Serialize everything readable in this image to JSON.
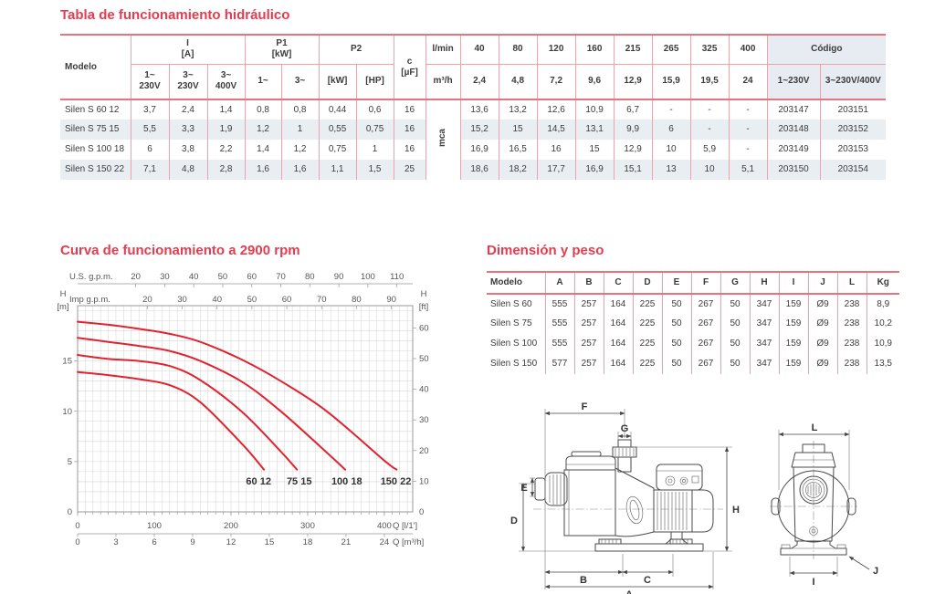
{
  "titles": {
    "hydraulic": "Tabla de funcionamiento hidráulico",
    "curve": "Curva de funcionamiento a 2900 rpm",
    "dimensions": "Dimensión y peso"
  },
  "ht": {
    "h": {
      "modelo": "Modelo",
      "i_a": "I\n[A]",
      "p1": "P1\n[kW]",
      "p2": "P2",
      "c": "c\n[µF]",
      "lmin": "l/min",
      "m3h": "m³/h",
      "v1_230": "1~\n230V",
      "v3_230": "3~\n230V",
      "v3_400": "3~\n400V",
      "p1_1": "1~",
      "p1_3": "3~",
      "p2_kw": "[kW]",
      "p2_hp": "[HP]",
      "codigo": "Código",
      "cod_1": "1~230V",
      "cod_3": "3~230V/400V"
    },
    "flow_lmin": [
      "40",
      "80",
      "120",
      "160",
      "215",
      "265",
      "325",
      "400"
    ],
    "flow_m3h": [
      "2,4",
      "4,8",
      "7,2",
      "9,6",
      "12,9",
      "15,9",
      "19,5",
      "24"
    ],
    "mca_label": "mca",
    "rows": [
      {
        "model": "Silen S 60 12",
        "i": [
          "3,7",
          "2,4",
          "1,4"
        ],
        "p1": [
          "0,8",
          "0,8"
        ],
        "p2": [
          "0,44",
          "0,6"
        ],
        "c": "16",
        "heads": [
          "13,6",
          "13,2",
          "12,6",
          "10,9",
          "6,7",
          "-",
          "-",
          "-"
        ],
        "codes": [
          "203147",
          "203151"
        ]
      },
      {
        "model": "Silen S 75 15",
        "i": [
          "5,5",
          "3,3",
          "1,9"
        ],
        "p1": [
          "1,2",
          "1"
        ],
        "p2": [
          "0,55",
          "0,75"
        ],
        "c": "16",
        "heads": [
          "15,2",
          "15",
          "14,5",
          "13,1",
          "9,9",
          "6",
          "-",
          "-"
        ],
        "codes": [
          "203148",
          "203152"
        ]
      },
      {
        "model": "Silen S 100 18",
        "i": [
          "6",
          "3,8",
          "2,2"
        ],
        "p1": [
          "1,4",
          "1,2"
        ],
        "p2": [
          "0,75",
          "1"
        ],
        "c": "16",
        "heads": [
          "16,9",
          "16,5",
          "16",
          "15",
          "12,9",
          "10",
          "5,9",
          "-"
        ],
        "codes": [
          "203149",
          "203153"
        ]
      },
      {
        "model": "Silen S 150 22",
        "i": [
          "7,1",
          "4,8",
          "2,8"
        ],
        "p1": [
          "1,6",
          "1,6"
        ],
        "p2": [
          "1,1",
          "1,5"
        ],
        "c": "25",
        "heads": [
          "18,6",
          "18,2",
          "17,7",
          "16,9",
          "15,1",
          "13",
          "10",
          "5,1"
        ],
        "codes": [
          "203150",
          "203154"
        ]
      }
    ]
  },
  "chart_data": {
    "type": "line",
    "title": "Curva de funcionamiento a 2900 rpm",
    "x_axis": {
      "label": "Q [l/1']",
      "ticks": [
        0,
        100,
        200,
        300,
        400
      ],
      "max": 437
    },
    "x_axis2": {
      "label": "Q [m³/h]",
      "ticks": [
        0,
        3,
        6,
        9,
        12,
        15,
        18,
        21,
        24
      ],
      "lmin_per_unit": 16.6667
    },
    "top_axis_us": {
      "label": "U.S. g.p.m.",
      "ticks": [
        20,
        30,
        40,
        50,
        60,
        70,
        80,
        90,
        100,
        110
      ],
      "lmin_per_unit": 3.785
    },
    "top_axis_imp": {
      "label": "Imp g.p.m.",
      "ticks": [
        20,
        30,
        40,
        50,
        60,
        70,
        80,
        90
      ],
      "lmin_per_unit": 4.546
    },
    "y_axis": {
      "label_lines": [
        "H",
        "[m]"
      ],
      "ticks": [
        0,
        5,
        10,
        15
      ],
      "max": 20.5
    },
    "y_axis2": {
      "label_lines": [
        "H",
        "[ft]"
      ],
      "ticks": [
        0,
        10,
        20,
        30,
        40,
        50,
        60
      ],
      "m_per_unit": 0.3048
    },
    "grid": {
      "x_step": 10,
      "y_step": 1
    },
    "curve_color": "#e2232f",
    "series": [
      {
        "name": "60 12",
        "points": [
          [
            0,
            13.9
          ],
          [
            40,
            13.6
          ],
          [
            80,
            13.2
          ],
          [
            120,
            12.6
          ],
          [
            160,
            10.9
          ],
          [
            215,
            6.7
          ],
          [
            243,
            4.2
          ]
        ]
      },
      {
        "name": "75 15",
        "points": [
          [
            0,
            15.6
          ],
          [
            40,
            15.2
          ],
          [
            80,
            15.0
          ],
          [
            120,
            14.5
          ],
          [
            160,
            13.1
          ],
          [
            215,
            9.9
          ],
          [
            265,
            6.0
          ],
          [
            286,
            4.2
          ]
        ]
      },
      {
        "name": "100 18",
        "points": [
          [
            0,
            17.3
          ],
          [
            40,
            16.9
          ],
          [
            80,
            16.5
          ],
          [
            120,
            16.0
          ],
          [
            160,
            15.0
          ],
          [
            215,
            12.9
          ],
          [
            265,
            10.0
          ],
          [
            325,
            5.9
          ],
          [
            349,
            4.2
          ]
        ]
      },
      {
        "name": "150 22",
        "points": [
          [
            0,
            18.9
          ],
          [
            40,
            18.6
          ],
          [
            80,
            18.2
          ],
          [
            120,
            17.7
          ],
          [
            160,
            16.9
          ],
          [
            215,
            15.1
          ],
          [
            265,
            13.0
          ],
          [
            325,
            10.0
          ],
          [
            400,
            5.1
          ],
          [
            416,
            4.2
          ]
        ]
      }
    ],
    "curve_labels": [
      {
        "text": "60 12",
        "q": 236,
        "h": 3.0
      },
      {
        "text": "75 15",
        "q": 289,
        "h": 3.0
      },
      {
        "text": "100 18",
        "q": 351,
        "h": 3.0
      },
      {
        "text": "150 22",
        "q": 415,
        "h": 3.0
      }
    ]
  },
  "dim_table": {
    "headers": [
      "Modelo",
      "A",
      "B",
      "C",
      "D",
      "E",
      "F",
      "G",
      "H",
      "I",
      "J",
      "L",
      "Kg"
    ],
    "rows": [
      [
        "Silen S 60",
        "555",
        "257",
        "164",
        "225",
        "50",
        "267",
        "50",
        "347",
        "159",
        "Ø9",
        "238",
        "8,9"
      ],
      [
        "Silen S 75",
        "555",
        "257",
        "164",
        "225",
        "50",
        "267",
        "50",
        "347",
        "159",
        "Ø9",
        "238",
        "10,2"
      ],
      [
        "Silen S 100",
        "555",
        "257",
        "164",
        "225",
        "50",
        "267",
        "50",
        "347",
        "159",
        "Ø9",
        "238",
        "10,9"
      ],
      [
        "Silen S 150",
        "577",
        "257",
        "164",
        "225",
        "50",
        "267",
        "50",
        "347",
        "159",
        "Ø9",
        "238",
        "13,5"
      ]
    ]
  },
  "drawing": {
    "labels": {
      "F": "F",
      "G": "G",
      "E": "E",
      "D": "D",
      "H": "H",
      "B": "B",
      "C": "C",
      "A": "A",
      "L": "L",
      "I": "I",
      "J": "J"
    }
  }
}
